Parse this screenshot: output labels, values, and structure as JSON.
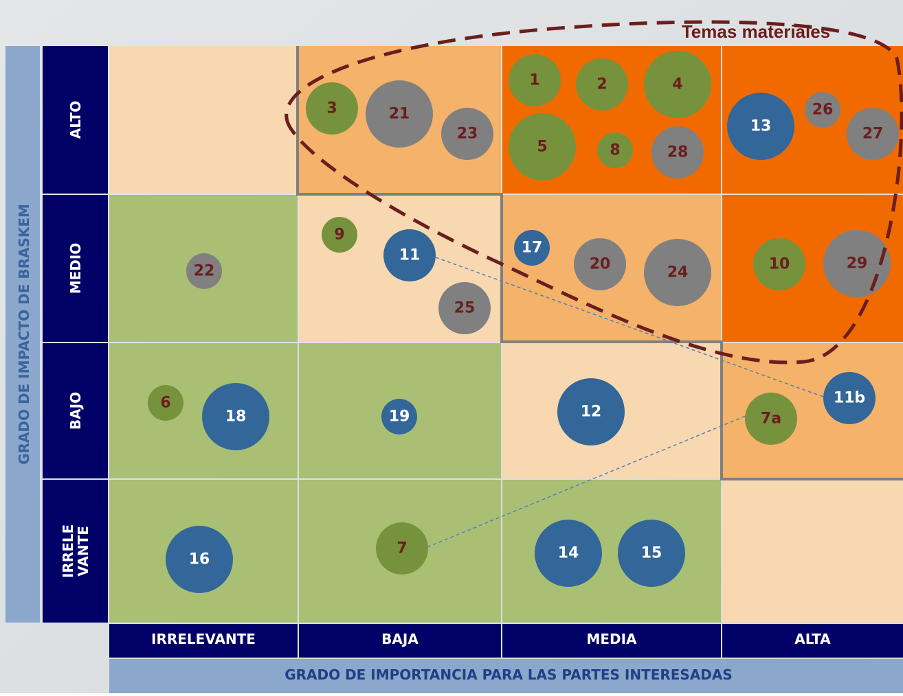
{
  "title": "Temas materiales",
  "y_axis_title": "GRADO DE IMPACTO DE BRASKEM",
  "x_axis_title": "GRADO DE IMPORTANCIA PARA LAS PARTES INTERESADAS",
  "row_labels": [
    [
      "ALTO"
    ],
    [
      "MEDIO"
    ],
    [
      "BAJO"
    ],
    [
      "IRRELE",
      "VANTE"
    ]
  ],
  "column_labels": [
    "IRRELEVANTE",
    "BAJA",
    "MEDIA",
    "ALTA"
  ],
  "nodes": [
    {
      "label": "3"
    },
    {
      "label": "21"
    },
    {
      "label": "23"
    },
    {
      "label": "1"
    },
    {
      "label": "2"
    },
    {
      "label": "4"
    },
    {
      "label": "5"
    },
    {
      "label": "8"
    },
    {
      "label": "28"
    },
    {
      "label": "13"
    },
    {
      "label": "26"
    },
    {
      "label": "27"
    },
    {
      "label": "9"
    },
    {
      "label": "11"
    },
    {
      "label": "25"
    },
    {
      "label": "22"
    },
    {
      "label": "17"
    },
    {
      "label": "20"
    },
    {
      "label": "24"
    },
    {
      "label": "10"
    },
    {
      "label": "29"
    },
    {
      "label": "6"
    },
    {
      "label": "18"
    },
    {
      "label": "19"
    },
    {
      "label": "12"
    },
    {
      "label": "7a"
    },
    {
      "label": "11b"
    },
    {
      "label": "16"
    },
    {
      "label": "7"
    },
    {
      "label": "14"
    },
    {
      "label": "15"
    }
  ]
}
